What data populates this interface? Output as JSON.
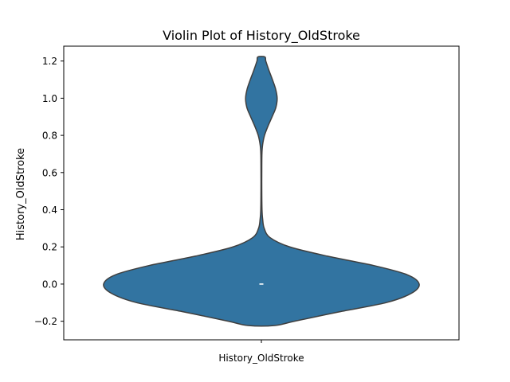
{
  "chart_data": {
    "type": "violin",
    "title": "Violin Plot of History_OldStroke",
    "xlabel": "",
    "ylabel": "History_OldStroke",
    "categories": [
      "History_OldStroke"
    ],
    "ylim": [
      -0.3,
      1.28
    ],
    "yticks": [
      -0.2,
      0.0,
      0.2,
      0.4,
      0.6,
      0.8,
      1.0,
      1.2
    ],
    "ytick_labels": [
      "−0.2",
      "0.0",
      "0.2",
      "0.4",
      "0.6",
      "0.8",
      "1.0",
      "1.2"
    ],
    "grid": false,
    "legend": "none",
    "fill_color": "#3274a1",
    "edge_color": "#3f3f3f",
    "median": 0.0,
    "density_profile": {
      "y": [
        -0.223,
        -0.2,
        -0.15,
        -0.1,
        -0.05,
        0.0,
        0.05,
        0.1,
        0.15,
        0.2,
        0.25,
        0.3,
        0.35,
        0.4,
        0.5,
        0.6,
        0.7,
        0.75,
        0.8,
        0.85,
        0.9,
        0.95,
        1.0,
        1.05,
        1.1,
        1.15,
        1.2,
        1.222
      ],
      "half_width_relative": [
        0.085,
        0.21,
        0.49,
        0.79,
        0.95,
        1.0,
        0.925,
        0.71,
        0.42,
        0.18,
        0.055,
        0.018,
        0.008,
        0.004,
        0.0025,
        0.0025,
        0.0035,
        0.008,
        0.02,
        0.042,
        0.068,
        0.092,
        0.1,
        0.09,
        0.07,
        0.048,
        0.028,
        0.022
      ]
    }
  }
}
